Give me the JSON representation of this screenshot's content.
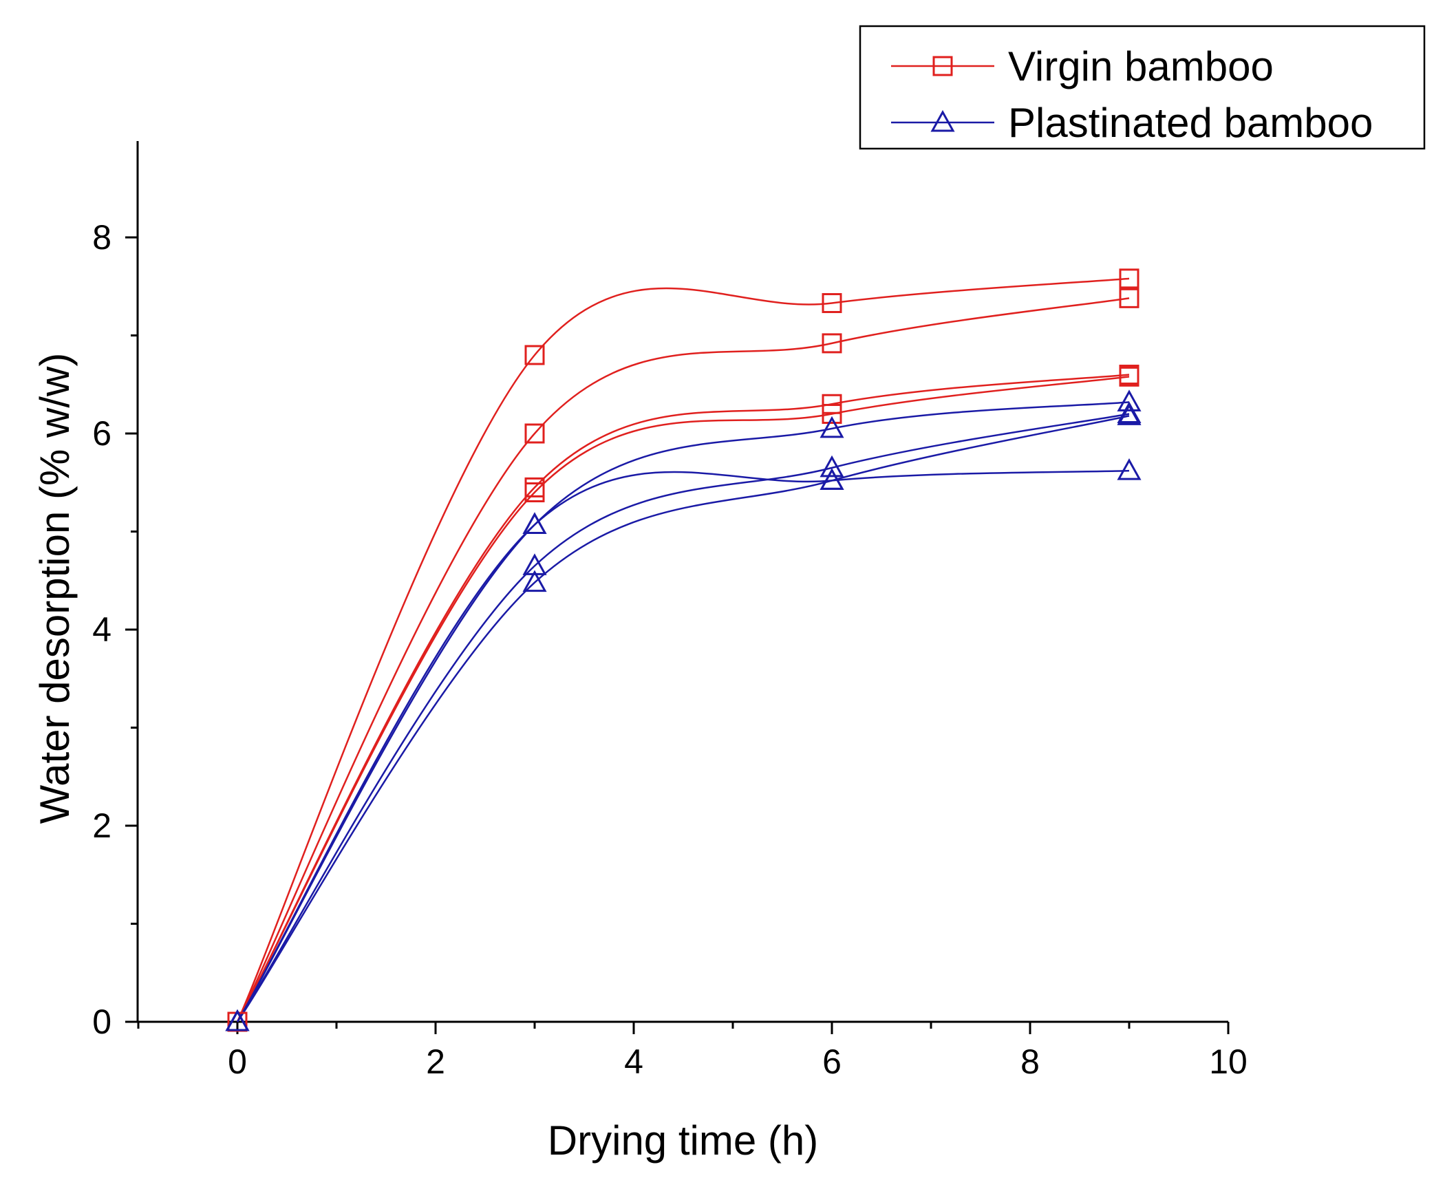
{
  "chart_data": {
    "type": "line",
    "title": "",
    "xlabel": "Drying time (h)",
    "ylabel": "Water desorption (% w/w)",
    "xlim": [
      -1,
      10
    ],
    "ylim": [
      0,
      8.9
    ],
    "x_ticks": [
      0,
      2,
      4,
      6,
      8,
      10
    ],
    "x_minor_ticks": [
      -1,
      1,
      3,
      5,
      7,
      9
    ],
    "y_ticks": [
      0,
      2,
      4,
      6,
      8
    ],
    "y_minor_ticks": [
      1,
      3,
      5,
      7
    ],
    "grid": false,
    "legend_position": "top-right",
    "legend": [
      {
        "label": "Virgin bamboo",
        "marker": "square",
        "color": "#e0201e"
      },
      {
        "label": "Plastinated bamboo",
        "marker": "triangle",
        "color": "#1a1aa6"
      }
    ],
    "x": [
      0,
      3,
      6,
      9
    ],
    "series": [
      {
        "name": "Virgin bamboo",
        "marker": "square",
        "color": "#e0201e",
        "values": [
          0,
          6.8,
          7.33,
          7.58
        ]
      },
      {
        "name": "Virgin bamboo",
        "marker": "square",
        "color": "#e0201e",
        "values": [
          0,
          6.0,
          6.92,
          7.38
        ]
      },
      {
        "name": "Virgin bamboo",
        "marker": "square",
        "color": "#e0201e",
        "values": [
          0,
          5.45,
          6.3,
          6.6
        ]
      },
      {
        "name": "Virgin bamboo",
        "marker": "square",
        "color": "#e0201e",
        "values": [
          0,
          5.4,
          6.2,
          6.58
        ]
      },
      {
        "name": "Plastinated bamboo",
        "marker": "triangle",
        "color": "#1a1aa6",
        "values": [
          0,
          5.07,
          6.05,
          6.32
        ]
      },
      {
        "name": "Plastinated bamboo",
        "marker": "triangle",
        "color": "#1a1aa6",
        "values": [
          0,
          5.07,
          5.52,
          5.62
        ]
      },
      {
        "name": "Plastinated bamboo",
        "marker": "triangle",
        "color": "#1a1aa6",
        "values": [
          0,
          4.65,
          5.65,
          6.2
        ]
      },
      {
        "name": "Plastinated bamboo",
        "marker": "triangle",
        "color": "#1a1aa6",
        "values": [
          0,
          4.48,
          5.52,
          6.18
        ]
      }
    ]
  }
}
